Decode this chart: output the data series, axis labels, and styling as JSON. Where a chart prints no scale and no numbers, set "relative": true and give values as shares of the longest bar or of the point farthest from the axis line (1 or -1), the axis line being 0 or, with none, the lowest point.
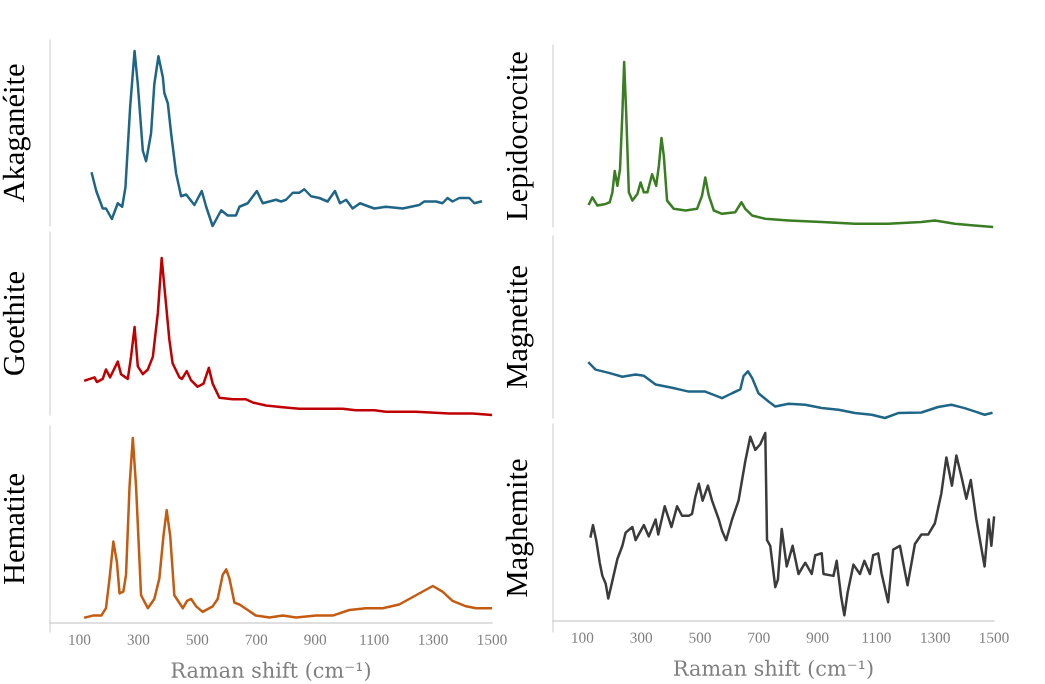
{
  "chart_data": [
    {
      "type": "line",
      "ylabel": "Akaganéite",
      "relative": true,
      "xlim": [
        0,
        1500
      ],
      "tick_labels": false,
      "x": [
        142,
        157,
        179,
        190,
        210,
        230,
        245,
        256,
        272,
        287,
        298,
        315,
        326,
        343,
        354,
        368,
        383,
        388,
        400,
        411,
        428,
        445,
        462,
        490,
        515,
        530,
        552,
        581,
        603,
        631,
        643,
        671,
        702,
        722,
        767,
        784,
        801,
        824,
        846,
        863,
        886,
        914,
        942,
        967,
        984,
        1005,
        1027,
        1052,
        1084,
        1101,
        1140,
        1197,
        1253,
        1270,
        1310,
        1332,
        1349,
        1366,
        1389,
        1423,
        1440,
        1462
      ],
      "series": [
        {
          "color": "#1f6587",
          "values": [
            0.3,
            0.2,
            0.1,
            0.1,
            0.04,
            0.13,
            0.11,
            0.22,
            0.68,
            1.0,
            0.81,
            0.43,
            0.37,
            0.53,
            0.81,
            0.97,
            0.85,
            0.76,
            0.7,
            0.53,
            0.3,
            0.17,
            0.18,
            0.12,
            0.2,
            0.11,
            0,
            0.09,
            0.06,
            0.06,
            0.11,
            0.13,
            0.2,
            0.13,
            0.15,
            0.14,
            0.15,
            0.19,
            0.19,
            0.21,
            0.17,
            0.16,
            0.14,
            0.2,
            0.13,
            0.15,
            0.1,
            0.13,
            0.11,
            0.1,
            0.11,
            0.1,
            0.12,
            0.14,
            0.14,
            0.13,
            0.16,
            0.14,
            0.16,
            0.16,
            0.13,
            0.14
          ]
        }
      ]
    },
    {
      "type": "line",
      "ylabel": "Goethite",
      "relative": true,
      "xlim": [
        0,
        1500
      ],
      "tick_labels": false,
      "x": [
        120,
        151,
        159,
        179,
        190,
        204,
        230,
        241,
        264,
        275,
        287,
        298,
        315,
        332,
        349,
        366,
        379,
        391,
        405,
        416,
        439,
        448,
        464,
        479,
        501,
        521,
        539,
        552,
        575,
        620,
        665,
        688,
        733,
        790,
        846,
        903,
        993,
        1038,
        1101,
        1140,
        1242,
        1355,
        1434,
        1496
      ],
      "series": [
        {
          "color": "#c00000",
          "values": [
            0.22,
            0.24,
            0.21,
            0.23,
            0.29,
            0.24,
            0.34,
            0.26,
            0.23,
            0.37,
            0.56,
            0.31,
            0.26,
            0.29,
            0.37,
            0.65,
            1.0,
            0.76,
            0.48,
            0.33,
            0.24,
            0.23,
            0.28,
            0.22,
            0.18,
            0.2,
            0.3,
            0.2,
            0.11,
            0.1,
            0.1,
            0.08,
            0.06,
            0.05,
            0.04,
            0.04,
            0.04,
            0.03,
            0.03,
            0.02,
            0.02,
            0.01,
            0.01,
            0
          ]
        }
      ]
    },
    {
      "type": "line",
      "ylabel": "Hematite",
      "relative": true,
      "xlabel": "Raman shift (cm⁻¹)",
      "xlim": [
        0,
        1500
      ],
      "xticks": [
        100,
        300,
        500,
        700,
        900,
        1100,
        1300,
        1500
      ],
      "tick_labels": "x",
      "x": [
        120,
        145,
        174,
        190,
        202,
        215,
        227,
        236,
        249,
        258,
        270,
        281,
        292,
        309,
        332,
        354,
        371,
        385,
        396,
        408,
        422,
        451,
        465,
        479,
        496,
        518,
        552,
        569,
        586,
        598,
        609,
        626,
        643,
        671,
        699,
        745,
        790,
        835,
        903,
        959,
        1016,
        1072,
        1129,
        1185,
        1242,
        1299,
        1332,
        1366,
        1412,
        1446,
        1496
      ],
      "series": [
        {
          "color": "#c55a11",
          "values": [
            0.03,
            0.04,
            0.04,
            0.08,
            0.24,
            0.44,
            0.33,
            0.16,
            0.17,
            0.26,
            0.74,
            1.0,
            0.74,
            0.15,
            0.08,
            0.13,
            0.24,
            0.47,
            0.61,
            0.47,
            0.15,
            0.08,
            0.12,
            0.13,
            0.09,
            0.06,
            0.09,
            0.13,
            0.26,
            0.29,
            0.24,
            0.11,
            0.1,
            0.07,
            0.04,
            0.03,
            0.04,
            0.03,
            0.04,
            0.04,
            0.07,
            0.08,
            0.08,
            0.1,
            0.15,
            0.2,
            0.17,
            0.12,
            0.09,
            0.08,
            0.08
          ]
        }
      ]
    },
    {
      "type": "line",
      "ylabel": "Lepidocrocite",
      "relative": true,
      "xlim": [
        0,
        1500
      ],
      "tick_labels": false,
      "x": [
        123,
        134,
        151,
        179,
        193,
        202,
        210,
        219,
        228,
        236,
        242,
        249,
        258,
        270,
        287,
        298,
        309,
        321,
        337,
        351,
        360,
        369,
        377,
        388,
        411,
        451,
        490,
        507,
        518,
        530,
        547,
        575,
        620,
        641,
        654,
        677,
        722,
        801,
        914,
        1027,
        1140,
        1253,
        1299,
        1367,
        1423,
        1493
      ],
      "series": [
        {
          "color": "#3a7d22",
          "values": [
            0.14,
            0.18,
            0.13,
            0.14,
            0.15,
            0.21,
            0.34,
            0.25,
            0.35,
            0.69,
            1.0,
            0.69,
            0.21,
            0.16,
            0.2,
            0.27,
            0.21,
            0.21,
            0.32,
            0.25,
            0.37,
            0.54,
            0.43,
            0.16,
            0.11,
            0.1,
            0.11,
            0.19,
            0.3,
            0.19,
            0.1,
            0.08,
            0.09,
            0.15,
            0.11,
            0.07,
            0.05,
            0.04,
            0.03,
            0.02,
            0.02,
            0.03,
            0.04,
            0.02,
            0.01,
            0
          ]
        }
      ]
    },
    {
      "type": "line",
      "ylabel": "Magnetite",
      "relative": true,
      "xlim": [
        0,
        1500
      ],
      "tick_labels": false,
      "x": [
        123,
        145,
        190,
        236,
        281,
        309,
        349,
        405,
        462,
        518,
        575,
        609,
        637,
        648,
        663,
        677,
        699,
        733,
        756,
        801,
        858,
        914,
        971,
        1027,
        1084,
        1129,
        1174,
        1253,
        1310,
        1355,
        1400,
        1434,
        1468,
        1491
      ],
      "series": [
        {
          "color": "#1f6587",
          "values": [
            1.0,
            0.88,
            0.82,
            0.75,
            0.79,
            0.77,
            0.61,
            0.55,
            0.48,
            0.48,
            0.36,
            0.45,
            0.52,
            0.76,
            0.85,
            0.73,
            0.45,
            0.3,
            0.21,
            0.26,
            0.24,
            0.18,
            0.15,
            0.09,
            0.06,
            0,
            0.09,
            0.1,
            0.2,
            0.24,
            0.18,
            0.12,
            0.06,
            0.09
          ]
        }
      ]
    },
    {
      "type": "line",
      "ylabel": "Maghemite",
      "relative": true,
      "xlabel": "Raman shift (cm⁻¹)",
      "xlim": [
        0,
        1500
      ],
      "xticks": [
        100,
        300,
        500,
        700,
        900,
        1100,
        1300,
        1500
      ],
      "tick_labels": "x",
      "x": [
        128,
        136,
        147,
        159,
        168,
        179,
        188,
        200,
        219,
        236,
        247,
        270,
        281,
        309,
        326,
        349,
        358,
        380,
        403,
        422,
        439,
        462,
        473,
        484,
        496,
        509,
        527,
        541,
        564,
        575,
        589,
        609,
        631,
        654,
        671,
        688,
        705,
        722,
        728,
        739,
        756,
        765,
        778,
        795,
        815,
        835,
        858,
        880,
        892,
        914,
        920,
        954,
        965,
        980,
        991,
        1002,
        1022,
        1044,
        1059,
        1078,
        1089,
        1106,
        1118,
        1140,
        1157,
        1180,
        1206,
        1231,
        1253,
        1276,
        1299,
        1321,
        1338,
        1357,
        1372,
        1389,
        1406,
        1421,
        1440,
        1468,
        1482,
        1491,
        1500
      ],
      "series": [
        {
          "color": "#3b3b3b",
          "values": [
            0.45,
            0.51,
            0.43,
            0.31,
            0.24,
            0.2,
            0.12,
            0.2,
            0.33,
            0.4,
            0.47,
            0.5,
            0.43,
            0.51,
            0.45,
            0.54,
            0.46,
            0.61,
            0.5,
            0.61,
            0.56,
            0.56,
            0.57,
            0.66,
            0.73,
            0.64,
            0.72,
            0.64,
            0.54,
            0.48,
            0.43,
            0.54,
            0.64,
            0.85,
            0.98,
            0.91,
            0.94,
            1.0,
            0.43,
            0.4,
            0.18,
            0.22,
            0.49,
            0.29,
            0.4,
            0.25,
            0.31,
            0.25,
            0.35,
            0.36,
            0.25,
            0.24,
            0.32,
            0.13,
            0.03,
            0.15,
            0.3,
            0.25,
            0.32,
            0.25,
            0.35,
            0.36,
            0.25,
            0.1,
            0.38,
            0.4,
            0.19,
            0.41,
            0.46,
            0.46,
            0.52,
            0.68,
            0.87,
            0.72,
            0.88,
            0.77,
            0.65,
            0.75,
            0.54,
            0.29,
            0.54,
            0.4,
            0.55
          ]
        }
      ]
    }
  ]
}
